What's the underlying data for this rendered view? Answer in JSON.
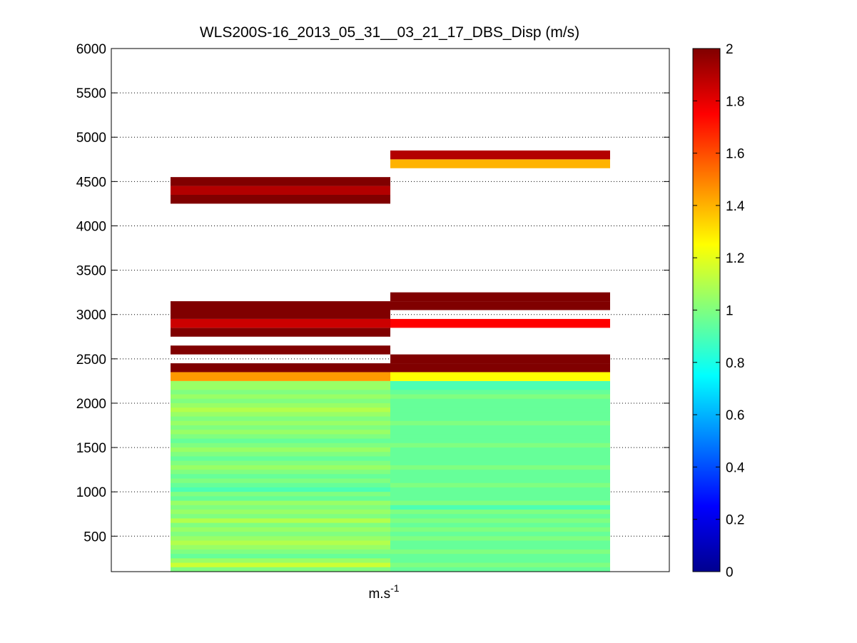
{
  "chart_data": {
    "type": "heatmap",
    "title": "WLS200S-16_2013_05_31__03_21_17_DBS_Disp (m/s)",
    "xlabel": "m.s",
    "xlabel_superscript": "-1",
    "ylabel": "",
    "ylim": [
      100,
      6000
    ],
    "yticks": [
      500,
      1000,
      1500,
      2000,
      2500,
      3000,
      3500,
      4000,
      4500,
      5000,
      5500,
      6000
    ],
    "ygrid": true,
    "cell_height": 100,
    "colorbar": {
      "min": 0,
      "max": 2,
      "ticks": [
        0,
        0.2,
        0.4,
        0.6,
        0.8,
        1,
        1.2,
        1.4,
        1.6,
        1.8,
        2
      ],
      "tick_labels": [
        "0",
        "0.2",
        "0.4",
        "0.6",
        "0.8",
        "1",
        "1.2",
        "1.4",
        "1.6",
        "1.8",
        "2"
      ],
      "colormap": "jet",
      "placement": "right"
    },
    "columns": [
      {
        "cells": [
          [
            150,
            1.0
          ],
          [
            200,
            1.15
          ],
          [
            250,
            1.05
          ],
          [
            300,
            0.95
          ],
          [
            350,
            1.0
          ],
          [
            400,
            1.05
          ],
          [
            450,
            1.1
          ],
          [
            500,
            1.05
          ],
          [
            550,
            1.0
          ],
          [
            600,
            1.05
          ],
          [
            650,
            1.0
          ],
          [
            700,
            1.1
          ],
          [
            750,
            1.0
          ],
          [
            800,
            1.05
          ],
          [
            850,
            1.0
          ],
          [
            900,
            1.05
          ],
          [
            950,
            0.95
          ],
          [
            1000,
            1.0
          ],
          [
            1050,
            0.9
          ],
          [
            1100,
            0.95
          ],
          [
            1150,
            1.0
          ],
          [
            1200,
            0.95
          ],
          [
            1250,
            1.0
          ],
          [
            1300,
            1.05
          ],
          [
            1350,
            1.0
          ],
          [
            1400,
            0.95
          ],
          [
            1450,
            1.0
          ],
          [
            1500,
            1.05
          ],
          [
            1550,
            1.0
          ],
          [
            1600,
            0.95
          ],
          [
            1650,
            1.0
          ],
          [
            1700,
            1.05
          ],
          [
            1750,
            1.0
          ],
          [
            1800,
            1.05
          ],
          [
            1850,
            1.0
          ],
          [
            1900,
            1.05
          ],
          [
            1950,
            1.1
          ],
          [
            2000,
            1.05
          ],
          [
            2050,
            1.0
          ],
          [
            2100,
            1.05
          ],
          [
            2150,
            1.0
          ],
          [
            2200,
            1.05
          ],
          [
            2300,
            1.45
          ],
          [
            2400,
            2.0
          ],
          [
            2600,
            2.0
          ],
          [
            2800,
            2.0
          ],
          [
            2900,
            1.85
          ],
          [
            3000,
            2.0
          ],
          [
            3100,
            2.0
          ],
          [
            4300,
            2.0
          ],
          [
            4400,
            1.9
          ],
          [
            4500,
            2.0
          ]
        ]
      },
      {
        "cells": [
          [
            150,
            0.95
          ],
          [
            200,
            1.0
          ],
          [
            250,
            0.95
          ],
          [
            300,
            0.95
          ],
          [
            350,
            1.0
          ],
          [
            400,
            0.95
          ],
          [
            450,
            0.95
          ],
          [
            500,
            1.0
          ],
          [
            550,
            0.95
          ],
          [
            600,
            1.0
          ],
          [
            650,
            0.95
          ],
          [
            700,
            1.0
          ],
          [
            750,
            0.95
          ],
          [
            800,
            1.0
          ],
          [
            850,
            0.9
          ],
          [
            900,
            1.0
          ],
          [
            950,
            0.95
          ],
          [
            1000,
            0.95
          ],
          [
            1050,
            0.95
          ],
          [
            1100,
            1.0
          ],
          [
            1150,
            0.95
          ],
          [
            1200,
            0.95
          ],
          [
            1250,
            0.95
          ],
          [
            1300,
            1.0
          ],
          [
            1350,
            0.95
          ],
          [
            1400,
            0.95
          ],
          [
            1450,
            0.95
          ],
          [
            1500,
            0.95
          ],
          [
            1550,
            1.0
          ],
          [
            1600,
            0.95
          ],
          [
            1650,
            0.95
          ],
          [
            1700,
            0.95
          ],
          [
            1750,
            0.95
          ],
          [
            1800,
            1.0
          ],
          [
            1850,
            0.95
          ],
          [
            1900,
            0.95
          ],
          [
            1950,
            0.95
          ],
          [
            2000,
            0.95
          ],
          [
            2050,
            0.95
          ],
          [
            2100,
            1.0
          ],
          [
            2150,
            0.95
          ],
          [
            2200,
            0.9
          ],
          [
            2300,
            1.25
          ],
          [
            2400,
            2.0
          ],
          [
            2500,
            2.0
          ],
          [
            2900,
            1.75
          ],
          [
            3100,
            2.0
          ],
          [
            3200,
            2.0
          ],
          [
            4700,
            1.4
          ],
          [
            4800,
            1.9
          ]
        ]
      }
    ]
  }
}
